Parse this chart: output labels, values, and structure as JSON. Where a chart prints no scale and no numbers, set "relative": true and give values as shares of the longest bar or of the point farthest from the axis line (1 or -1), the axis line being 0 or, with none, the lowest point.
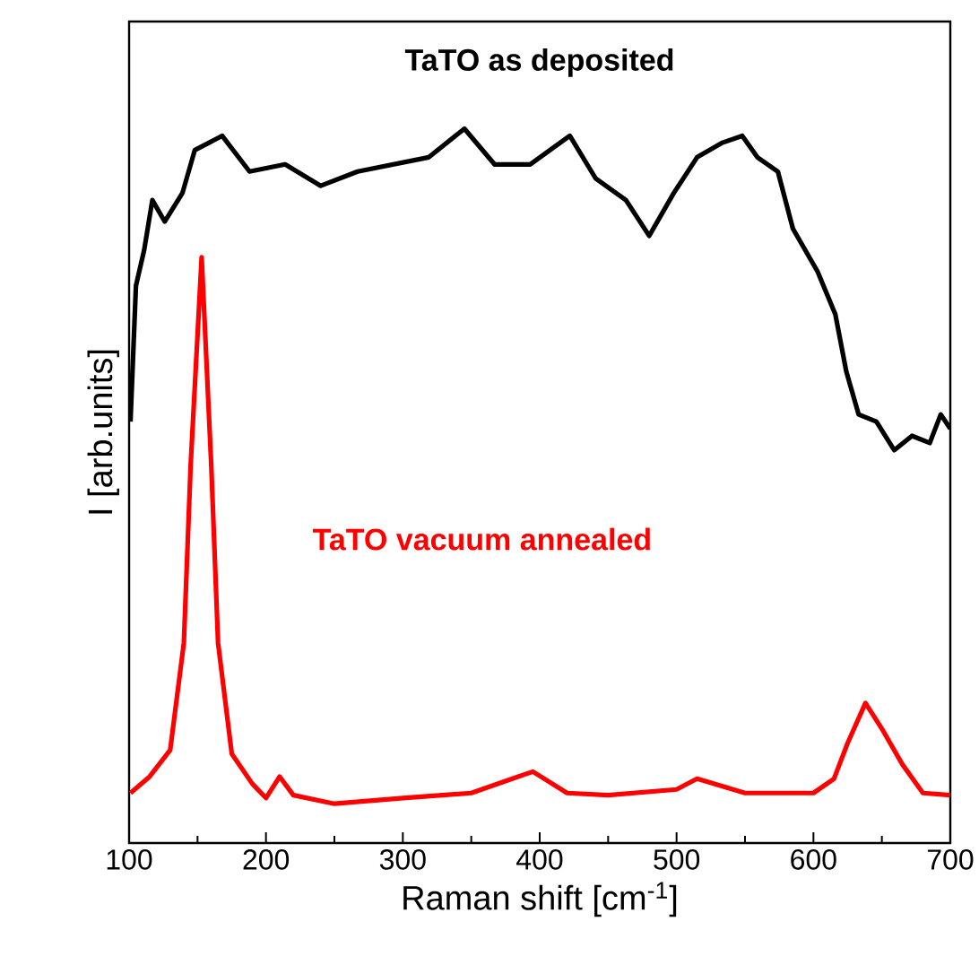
{
  "chart_data": {
    "type": "line",
    "xlabel": "Raman shift [cm$^{-1}$]",
    "ylabel": "I [arb.units]",
    "relative": true,
    "xlim": [
      100,
      700
    ],
    "xticks": [
      100,
      200,
      300,
      400,
      500,
      600,
      700
    ],
    "tick_labels": "x",
    "marker": "none",
    "line_style": "solid",
    "series": [
      {
        "name": "TaTO as deposited",
        "color": "#000000",
        "x": [
          101,
          105,
          111,
          117,
          126,
          139,
          148,
          168,
          188,
          214,
          240,
          267,
          293,
          319,
          345,
          367,
          393,
          422,
          441,
          463,
          480,
          498,
          515,
          533,
          548,
          559,
          574,
          585,
          603,
          616,
          624,
          633,
          646,
          659,
          672,
          685,
          693,
          700
        ],
        "values": [
          0.59,
          0.78,
          0.83,
          0.9,
          0.87,
          0.91,
          0.97,
          0.99,
          0.94,
          0.95,
          0.92,
          0.94,
          0.95,
          0.96,
          1.0,
          0.95,
          0.95,
          0.99,
          0.93,
          0.9,
          0.85,
          0.91,
          0.96,
          0.98,
          0.99,
          0.96,
          0.94,
          0.86,
          0.8,
          0.74,
          0.66,
          0.6,
          0.59,
          0.55,
          0.57,
          0.56,
          0.6,
          0.58
        ]
      },
      {
        "name": "TaTO vacuum annealed",
        "color": "#ff0000",
        "x": [
          101,
          115,
          130,
          140,
          145,
          153,
          160,
          165,
          175,
          190,
          200,
          210,
          220,
          250,
          300,
          350,
          380,
          395,
          420,
          450,
          500,
          515,
          550,
          600,
          615,
          625,
          638,
          650,
          665,
          680,
          700
        ],
        "values": [
          0.07,
          0.093,
          0.13,
          0.28,
          0.53,
          0.82,
          0.53,
          0.28,
          0.125,
          0.083,
          0.063,
          0.093,
          0.067,
          0.055,
          0.063,
          0.07,
          0.09,
          0.1,
          0.07,
          0.067,
          0.075,
          0.09,
          0.07,
          0.07,
          0.09,
          0.14,
          0.196,
          0.16,
          0.11,
          0.07,
          0.067
        ]
      }
    ]
  }
}
